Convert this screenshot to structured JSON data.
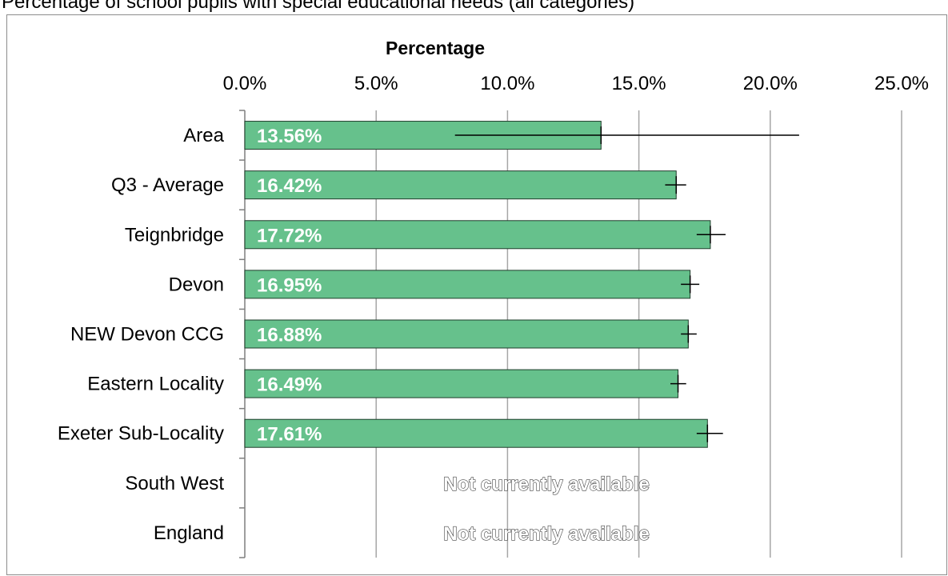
{
  "chart_data": {
    "type": "bar",
    "orientation": "horizontal",
    "title": "Percentage of school pupils with special educational needs (all categories)",
    "xlabel": "Percentage",
    "xlim": [
      0,
      25
    ],
    "x_ticks": [
      "0.0%",
      "5.0%",
      "10.0%",
      "15.0%",
      "20.0%",
      "25.0%"
    ],
    "grid": true,
    "categories": [
      "Area",
      "Q3 - Average",
      "Teignbridge",
      "Devon",
      "NEW Devon CCG",
      "Eastern Locality",
      "Exeter Sub-Locality",
      "South West",
      "England"
    ],
    "values": [
      13.56,
      16.42,
      17.72,
      16.95,
      16.88,
      16.49,
      17.61,
      null,
      null
    ],
    "value_labels": [
      "13.56%",
      "16.42%",
      "17.72%",
      "16.95%",
      "16.88%",
      "16.49%",
      "17.61%",
      "Not currently available",
      "Not currently available"
    ],
    "error_low": [
      8.0,
      16.0,
      17.2,
      16.6,
      16.6,
      16.2,
      17.2,
      null,
      null
    ],
    "error_high": [
      21.1,
      16.8,
      18.3,
      17.3,
      17.2,
      16.8,
      18.2,
      null,
      null
    ],
    "bar_color": "#66c18c",
    "bar_border": "#1f3d2b",
    "grid_color": "#a6a6a6"
  }
}
